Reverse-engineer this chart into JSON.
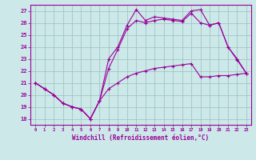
{
  "xlabel": "Windchill (Refroidissement éolien,°C)",
  "x_ticks": [
    0,
    1,
    2,
    3,
    4,
    5,
    6,
    7,
    8,
    9,
    10,
    11,
    12,
    13,
    14,
    15,
    16,
    17,
    18,
    19,
    20,
    21,
    22,
    23
  ],
  "ylim": [
    17.5,
    27.5
  ],
  "xlim": [
    -0.5,
    23.5
  ],
  "yticks": [
    18,
    19,
    20,
    21,
    22,
    23,
    24,
    25,
    26,
    27
  ],
  "bg_color": "#cce8e8",
  "grid_color": "#9bbfbf",
  "line_color": "#990099",
  "series1_x": [
    0,
    1,
    2,
    3,
    4,
    5,
    6,
    7,
    8,
    9,
    10,
    11,
    12,
    13,
    14,
    15,
    16,
    17,
    18,
    19,
    20,
    21,
    22,
    23
  ],
  "series1_y": [
    21.0,
    20.5,
    20.0,
    19.3,
    19.0,
    18.8,
    18.0,
    19.5,
    20.5,
    21.0,
    21.5,
    21.8,
    22.0,
    22.2,
    22.3,
    22.4,
    22.5,
    22.6,
    21.5,
    21.5,
    21.6,
    21.6,
    21.7,
    21.8
  ],
  "series2_x": [
    0,
    1,
    2,
    3,
    4,
    5,
    6,
    7,
    8,
    9,
    10,
    11,
    12,
    13,
    14,
    15,
    16,
    17,
    18,
    19,
    20,
    21,
    22,
    23
  ],
  "series2_y": [
    21.0,
    20.5,
    20.0,
    19.3,
    19.0,
    18.8,
    18.0,
    19.5,
    22.2,
    23.8,
    25.5,
    26.2,
    26.0,
    26.2,
    26.3,
    26.2,
    26.1,
    26.8,
    26.0,
    25.8,
    26.0,
    24.0,
    22.9,
    21.8
  ],
  "series3_x": [
    0,
    1,
    2,
    3,
    4,
    5,
    6,
    7,
    8,
    9,
    10,
    11,
    12,
    13,
    14,
    15,
    16,
    17,
    18,
    19,
    20,
    21,
    22,
    23
  ],
  "series3_y": [
    21.0,
    20.5,
    20.0,
    19.3,
    19.0,
    18.8,
    18.0,
    19.5,
    23.0,
    24.0,
    25.8,
    27.1,
    26.2,
    26.5,
    26.4,
    26.3,
    26.2,
    27.0,
    27.1,
    25.8,
    26.0,
    24.0,
    23.0,
    21.8
  ]
}
